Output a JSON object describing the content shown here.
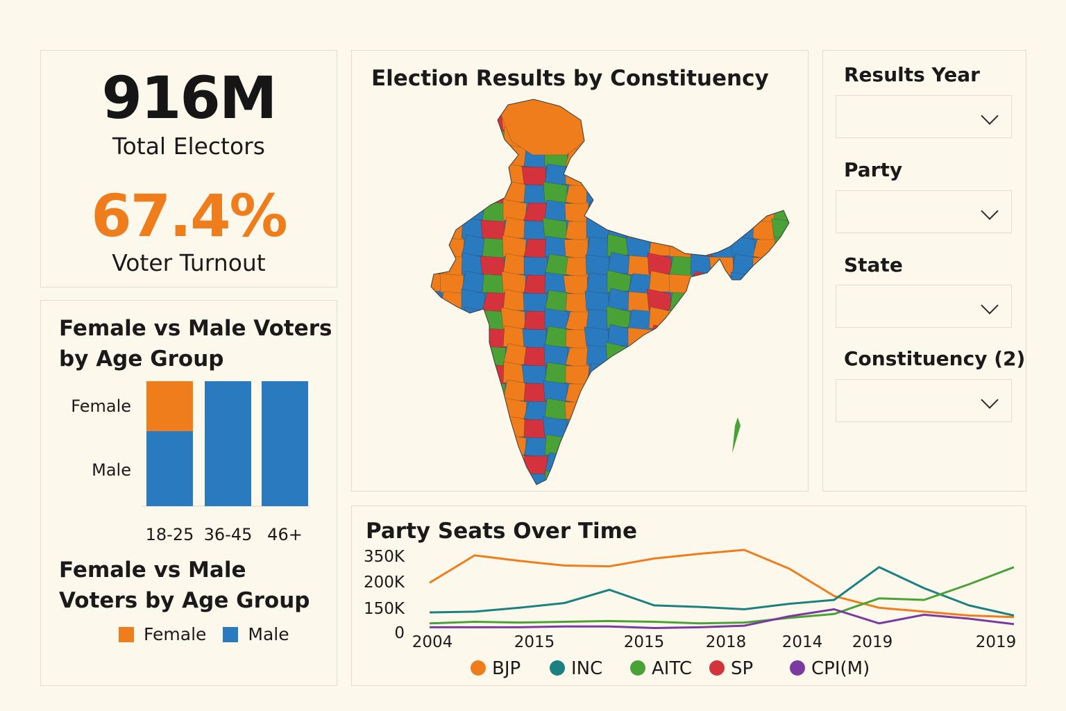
{
  "kpi": {
    "electors_value": "916M",
    "electors_label": "Total Electors",
    "turnout_value": "67.4%",
    "turnout_label": "Voter Turnout"
  },
  "age_chart": {
    "title": "Female vs Male Voters by Age Group",
    "legend_title": "Female vs Male Voters by Age Group",
    "legend": [
      "Female",
      "Male"
    ],
    "colors": {
      "Female": "#f07d1b",
      "Male": "#2a7abf"
    }
  },
  "map": {
    "title": "Election Results by Constituency",
    "party_colors": [
      "#f07d1b",
      "#2a7abf",
      "#4aa236",
      "#d4323d"
    ]
  },
  "filters": {
    "items": [
      {
        "label": "Results Year",
        "value": ""
      },
      {
        "label": "Party",
        "value": ""
      },
      {
        "label": "State",
        "value": ""
      },
      {
        "label": "Constituency (2)",
        "value": ""
      }
    ]
  },
  "line_chart": {
    "title": "Party Seats Over Time"
  },
  "chart_data": [
    {
      "type": "bar",
      "title": "Female vs Male Voters by Age Group",
      "categories": [
        "18-25",
        "36-45",
        "46+"
      ],
      "y_categories": [
        "Female",
        "Male"
      ],
      "series": [
        {
          "name": "Female",
          "values": [
            0.4,
            0,
            0
          ]
        },
        {
          "name": "Male",
          "values": [
            0.6,
            1,
            1
          ]
        }
      ],
      "stacked": true,
      "legend": "bottom"
    },
    {
      "type": "line",
      "title": "Party Seats Over Time",
      "x_labels": [
        "2004",
        "2015",
        "2015",
        "2018",
        "2014",
        "2019",
        "2019"
      ],
      "y_ticks": [
        "0",
        "150K",
        "200K",
        "350K"
      ],
      "legend": "bottom",
      "series": [
        {
          "name": "BJP",
          "color": "#f07d1b",
          "values": [
            0.62,
            0.97,
            0.9,
            0.84,
            0.83,
            0.93,
            0.99,
            1.04,
            0.8,
            0.45,
            0.3,
            0.25,
            0.2,
            0.18
          ]
        },
        {
          "name": "INC",
          "color": "#1b8080",
          "values": [
            0.24,
            0.25,
            0.3,
            0.36,
            0.53,
            0.33,
            0.31,
            0.28,
            0.35,
            0.4,
            0.82,
            0.55,
            0.33,
            0.2
          ]
        },
        {
          "name": "AITC",
          "color": "#4aa236",
          "values": [
            0.1,
            0.12,
            0.11,
            0.12,
            0.13,
            0.12,
            0.1,
            0.11,
            0.17,
            0.22,
            0.42,
            0.4,
            0.6,
            0.82
          ]
        },
        {
          "name": "SP",
          "color": "#d4323d",
          "values": []
        },
        {
          "name": "CPI(M)",
          "color": "#7b3aa0",
          "values": [
            0.05,
            0.05,
            0.05,
            0.06,
            0.06,
            0.04,
            0.05,
            0.07,
            0.19,
            0.28,
            0.1,
            0.21,
            0.16,
            0.09
          ]
        }
      ]
    }
  ]
}
